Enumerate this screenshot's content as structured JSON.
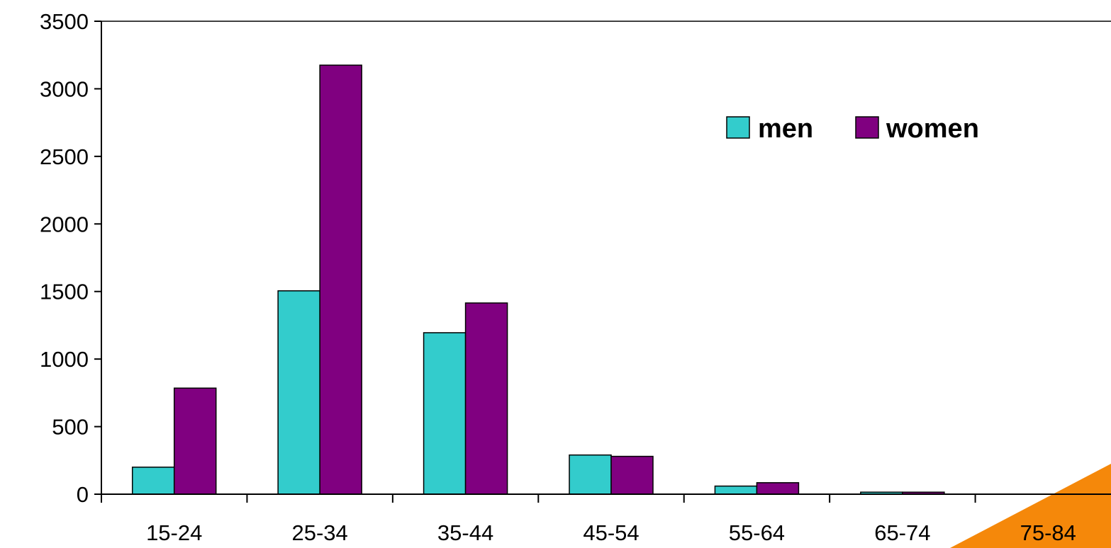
{
  "colors": {
    "men": "#33CCCC",
    "women": "#800080",
    "axis": "#000000",
    "corner_accent": "#F5880A",
    "background": "#FFFFFF"
  },
  "chart_data": {
    "type": "bar",
    "title": "",
    "xlabel": "",
    "ylabel": "",
    "categories": [
      "15-24",
      "25-34",
      "35-44",
      "45-54",
      "55-64",
      "65-74",
      "75-84"
    ],
    "series": [
      {
        "name": "men",
        "values": [
          200,
          1505,
          1195,
          290,
          60,
          15,
          0
        ]
      },
      {
        "name": "women",
        "values": [
          785,
          3175,
          1415,
          280,
          85,
          15,
          0
        ]
      }
    ],
    "ylim": [
      0,
      3500
    ],
    "yticks": [
      0,
      500,
      1000,
      1500,
      2000,
      2500,
      3000,
      3500
    ],
    "grid": false,
    "legend": {
      "position": "top-right",
      "orientation": "horizontal"
    }
  }
}
